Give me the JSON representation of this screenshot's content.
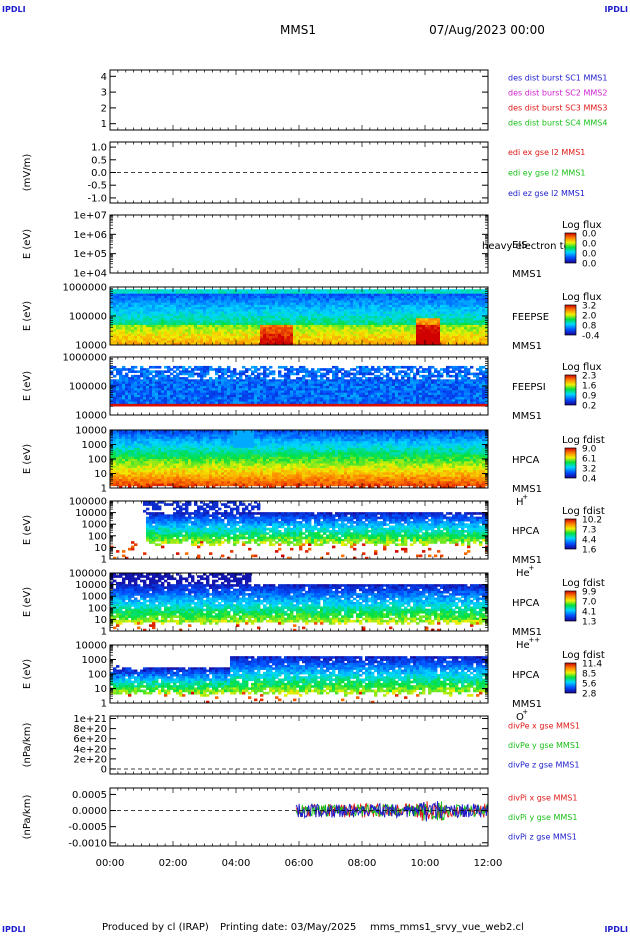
{
  "header": {
    "corner_tl": "IPDLI",
    "corner_tr": "IPDLI",
    "corner_bl": "IPDLI",
    "corner_br": "IPDLI",
    "mission": "MMS1",
    "datetime": "07/Aug/2023 00:00"
  },
  "footer": {
    "produced_by": "Produced by cl (IRAP)",
    "printing_date": "Printing date: 03/May/2025",
    "script_name": "mms_mms1_srvy_vue_web2.cl"
  },
  "colors": {
    "blue": "#1c1ccc",
    "magenta": "#d020d0",
    "red": "#e01818",
    "green": "#18c018",
    "black": "#000000"
  },
  "chart_data": {
    "type": "multi-panel",
    "xaxis": {
      "ticks": [
        "00:00",
        "02:00",
        "04:00",
        "06:00",
        "08:00",
        "10:00",
        "12:00"
      ],
      "range_hours": [
        0,
        12
      ]
    },
    "panels": [
      {
        "kind": "line",
        "ylabel": "",
        "yticks": [
          "4",
          "3",
          "2",
          "1"
        ],
        "ylim": [
          0.6,
          4.4
        ],
        "zero_line": false,
        "labels": [
          {
            "text": "des dist burst SC1 MMS1",
            "color": "blue"
          },
          {
            "text": "des dist burst SC2 MMS2",
            "color": "magenta"
          },
          {
            "text": "des dist burst SC3 MMS3",
            "color": "red"
          },
          {
            "text": "des dist burst SC4 MMS4",
            "color": "green"
          }
        ]
      },
      {
        "kind": "line",
        "ylabel": "(mV/m)",
        "yticks": [
          "1.0",
          "0.5",
          "0.0",
          "-0.5",
          "-1.0"
        ],
        "ylim": [
          -1.2,
          1.2
        ],
        "zero_line": true,
        "labels": [
          {
            "text": "edi ex gse l2 MMS1",
            "color": "red"
          },
          {
            "text": "edi ey gse l2 MMS1",
            "color": "green"
          },
          {
            "text": "edi ez gse l2 MMS1",
            "color": "blue"
          }
        ]
      },
      {
        "kind": "spectrogram",
        "ylabel": "E (eV)",
        "yticks": [
          "1e+07",
          "1e+06",
          "1e+05",
          "1e+04"
        ],
        "side_text": [
          "EIS",
          "MMS1"
        ],
        "overlay_text": "heavy electron to",
        "colorbar_title": "Log flux",
        "colorbar_ticks": [
          "0.0",
          "0.0",
          "0.0",
          "0.0"
        ],
        "empty": true
      },
      {
        "kind": "spectrogram",
        "ylabel": "E (eV)",
        "yticks": [
          "1000000",
          "100000",
          "10000"
        ],
        "side_text": [
          "FEEPSE",
          "MMS1"
        ],
        "colorbar_title": "Log flux",
        "colorbar_ticks": [
          "3.2",
          "2.0",
          "0.8",
          "-0.4"
        ]
      },
      {
        "kind": "spectrogram",
        "ylabel": "E (eV)",
        "yticks": [
          "1000000",
          "100000",
          "10000"
        ],
        "side_text": [
          "FEEPSI",
          "MMS1"
        ],
        "colorbar_title": "Log flux",
        "colorbar_ticks": [
          "2.3",
          "1.6",
          "0.9",
          "0.2"
        ]
      },
      {
        "kind": "spectrogram",
        "ylabel": "E (eV)",
        "yticks": [
          "10000",
          "1000",
          "100",
          "10",
          "1"
        ],
        "side_text": [
          "HPCA",
          "MMS1"
        ],
        "species": "H",
        "species_sup": "+",
        "colorbar_title": "Log fdist",
        "colorbar_ticks": [
          "9.0",
          "6.1",
          "3.2",
          "0.4"
        ]
      },
      {
        "kind": "spectrogram",
        "ylabel": "E (eV)",
        "yticks": [
          "100000",
          "10000",
          "1000",
          "100",
          "10",
          "1"
        ],
        "side_text": [
          "HPCA",
          "MMS1"
        ],
        "species": "He",
        "species_sup": "+",
        "colorbar_title": "Log fdist",
        "colorbar_ticks": [
          "10.2",
          "7.3",
          "4.4",
          "1.6"
        ]
      },
      {
        "kind": "spectrogram",
        "ylabel": "E (eV)",
        "yticks": [
          "100000",
          "10000",
          "1000",
          "100",
          "10",
          "1"
        ],
        "side_text": [
          "HPCA",
          "MMS1"
        ],
        "species": "He",
        "species_sup": "++",
        "colorbar_title": "Log fdist",
        "colorbar_ticks": [
          "9.9",
          "7.0",
          "4.1",
          "1.3"
        ]
      },
      {
        "kind": "spectrogram",
        "ylabel": "E (eV)",
        "yticks": [
          "10000",
          "1000",
          "100",
          "10",
          "1"
        ],
        "side_text": [
          "HPCA",
          "MMS1"
        ],
        "species": "O",
        "species_sup": "+",
        "colorbar_title": "Log fdist",
        "colorbar_ticks": [
          "11.4",
          "8.5",
          "5.6",
          "2.8"
        ]
      },
      {
        "kind": "line",
        "ylabel": "(nPa/km)",
        "yticks": [
          "1e+21",
          "8e+20",
          "6e+20",
          "4e+20",
          "2e+20",
          "0"
        ],
        "ylim": [
          -1e+20,
          1.05e+21
        ],
        "zero_line": true,
        "labels": [
          {
            "text": "divPe x gse MMS1",
            "color": "red"
          },
          {
            "text": "divPe y gse MMS1",
            "color": "green"
          },
          {
            "text": "divPe z gse MMS1",
            "color": "blue"
          }
        ]
      },
      {
        "kind": "line",
        "ylabel": "(nPa/km)",
        "yticks": [
          "0.0005",
          "0.0000",
          "-0.0005",
          "-0.0010"
        ],
        "ylim": [
          -0.0011,
          0.0007
        ],
        "zero_line": true,
        "noise_start_hour": 5.9,
        "labels": [
          {
            "text": "divPi x gse MMS1",
            "color": "red"
          },
          {
            "text": "divPi y gse MMS1",
            "color": "green"
          },
          {
            "text": "divPi z gse MMS1",
            "color": "blue"
          }
        ]
      }
    ]
  }
}
